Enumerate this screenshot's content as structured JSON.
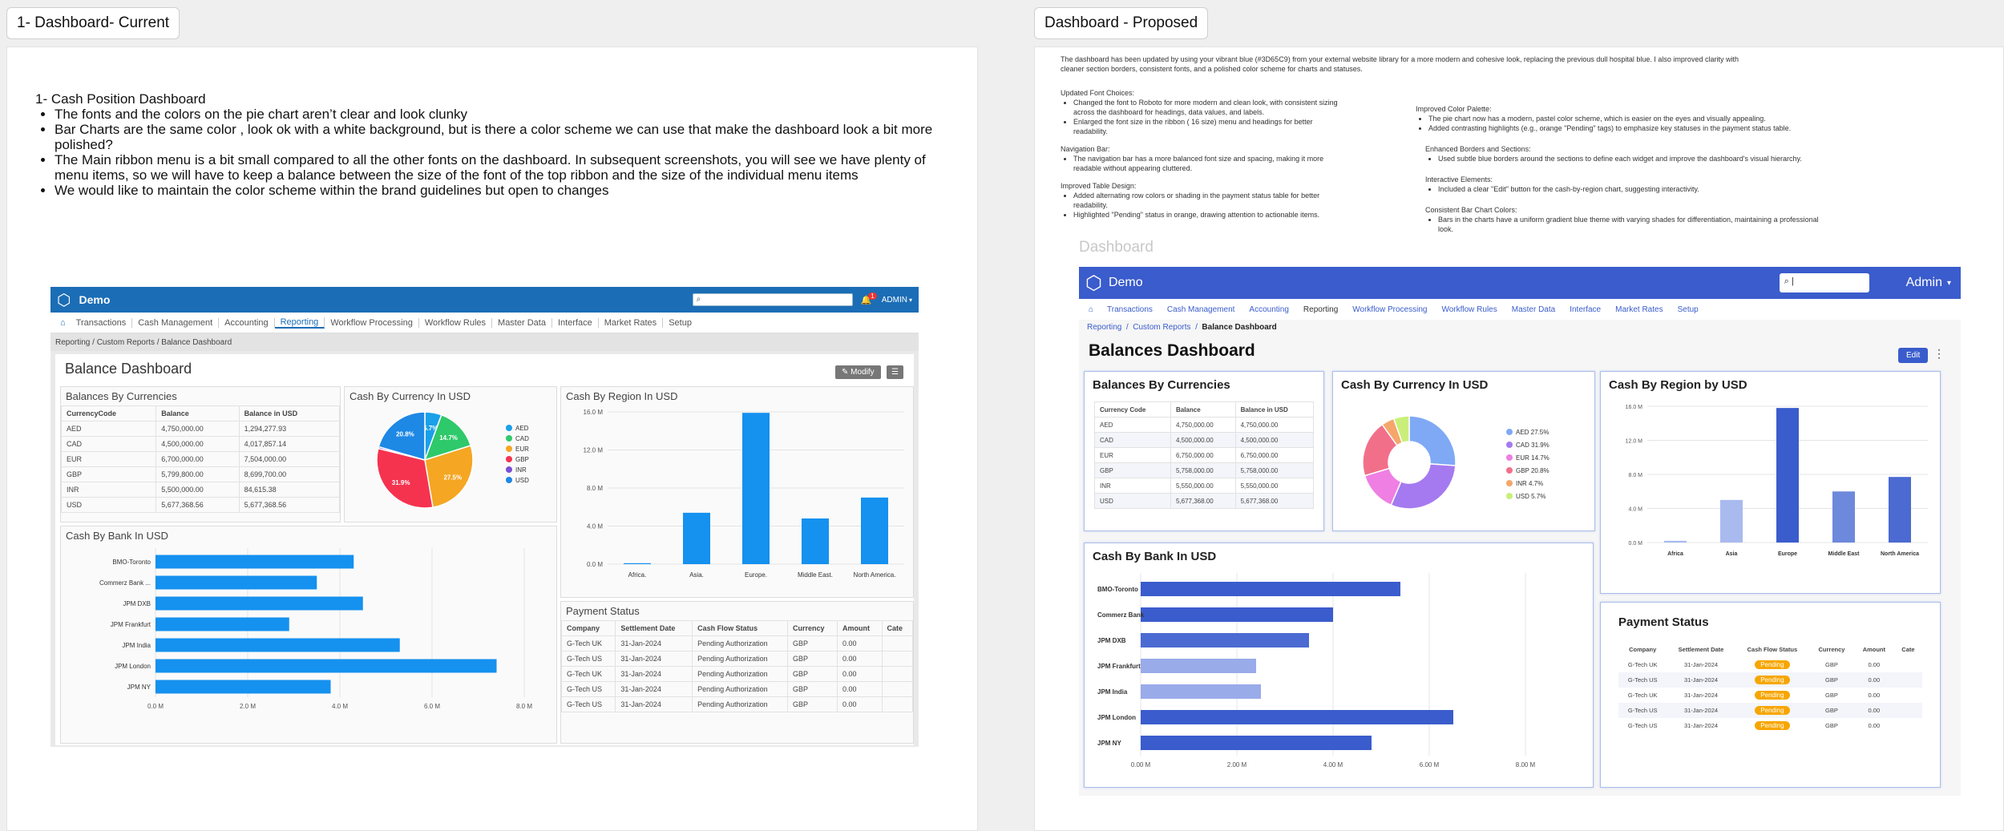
{
  "frames": {
    "current_label": "1- Dashboard- Current",
    "proposed_label": "Dashboard - Proposed"
  },
  "intro": {
    "title": "1- Cash Position Dashboard",
    "bullets": [
      "The fonts and the colors on the pie chart aren’t clear and look clunky",
      "Bar Charts are the same color , look ok with a white background, but is there a color scheme we can use that make the dashboard look a bit more polished?",
      "The Main ribbon menu is a bit small compared to all the other fonts on the dashboard. In subsequent screenshots, you will see we have plenty of menu items, so we will have to keep a balance between the size of the font of the top ribbon and the size of the individual menu items",
      "We would like to maintain the color scheme within the brand guidelines but open to changes"
    ]
  },
  "current": {
    "app_name": "Demo",
    "notif_count": "1",
    "user": "ADMIN",
    "nav": [
      "Transactions",
      "Cash Management",
      "Accounting",
      "Reporting",
      "Workflow Processing",
      "Workflow Rules",
      "Master Data",
      "Interface",
      "Market Rates",
      "Setup"
    ],
    "breadcrumb": [
      "Reporting",
      "Custom Reports",
      "Balance Dashboard"
    ],
    "title": "Balance Dashboard",
    "modify_label": "Modify",
    "balances": {
      "title": "Balances By Currencies",
      "headers": [
        "CurrencyCode",
        "Balance",
        "Balance in USD"
      ],
      "rows": [
        [
          "AED",
          "4,750,000.00",
          "1,294,277.93"
        ],
        [
          "CAD",
          "4,500,000.00",
          "4,017,857.14"
        ],
        [
          "EUR",
          "6,700,000.00",
          "7,504,000.00"
        ],
        [
          "GBP",
          "5,799,800.00",
          "8,699,700.00"
        ],
        [
          "INR",
          "5,500,000.00",
          "84,615.38"
        ],
        [
          "USD",
          "5,677,368.56",
          "5,677,368.56"
        ]
      ]
    },
    "pie": {
      "title": "Cash By Currency In USD"
    },
    "region": {
      "title": "Cash By Region In USD"
    },
    "bank": {
      "title": "Cash By Bank In USD"
    },
    "payment": {
      "title": "Payment Status",
      "headers": [
        "Company",
        "Settlement Date",
        "Cash Flow Status",
        "Currency",
        "Amount",
        "Cate"
      ],
      "rows": [
        [
          "G-Tech UK",
          "31-Jan-2024",
          "Pending Authorization",
          "GBP",
          "0.00"
        ],
        [
          "G-Tech US",
          "31-Jan-2024",
          "Pending Authorization",
          "GBP",
          "0.00"
        ],
        [
          "G-Tech UK",
          "31-Jan-2024",
          "Pending Authorization",
          "GBP",
          "0.00"
        ],
        [
          "G-Tech US",
          "31-Jan-2024",
          "Pending Authorization",
          "GBP",
          "0.00"
        ],
        [
          "G-Tech US",
          "31-Jan-2024",
          "Pending Authorization",
          "GBP",
          "0.00"
        ]
      ]
    }
  },
  "notes": {
    "intro": "The dashboard has been updated by using your vibrant blue (#3D65C9) from your external website library for a more modern and cohesive look, replacing the previous dull hospital blue. I also improved clarity with cleaner section borders, consistent fonts, and a polished color scheme for charts and statuses.",
    "fonts_title": "Updated Font Choices:",
    "fonts_items": [
      "Changed the font to Roboto for more modern and clean look, with consistent sizing across the dashboard for headings, data values, and labels.",
      "Enlarged the font size in the ribbon ( 16 size) menu and headings for better readability."
    ],
    "nav_title": "Navigation Bar:",
    "nav_items": [
      "The navigation bar has a more balanced font size and spacing, making it more readable without appearing cluttered."
    ],
    "table_title": "Improved Table Design:",
    "table_items": [
      "Added alternating row colors or shading in the payment status table for better readability.",
      "Highlighted \"Pending\" status in orange, drawing attention to actionable items."
    ],
    "palette_title": "Improved Color Palette:",
    "palette_items": [
      "The pie chart now has a modern, pastel color scheme, which is easier on the eyes and visually appealing.",
      "Added contrasting highlights (e.g., orange \"Pending\" tags) to emphasize key statuses in the payment status table."
    ],
    "borders_title": "Enhanced Borders and Sections:",
    "borders_items": [
      "Used subtle blue borders around the sections to define each widget and improve the dashboard's visual hierarchy."
    ],
    "interactive_title": "Interactive Elements:",
    "interactive_items": [
      "Included a clear \"Edit\" button for the cash-by-region chart, suggesting interactivity."
    ],
    "bar_title": "Consistent Bar Chart Colors:",
    "bar_items": [
      "Bars in the charts have a uniform gradient blue theme with varying shades for differentiation, maintaining a professional look."
    ]
  },
  "proposed": {
    "section_label": "Dashboard",
    "app_name": "Demo",
    "user": "Admin",
    "nav": [
      "Transactions",
      "Cash Management",
      "Accounting",
      "Reporting",
      "Workflow Processing",
      "Workflow Rules",
      "Master Data",
      "Interface",
      "Market Rates",
      "Setup"
    ],
    "breadcrumb": [
      "Reporting",
      "Custom Reports",
      "Balance Dashboard"
    ],
    "title": "Balances Dashboard",
    "edit_label": "Edit",
    "balances": {
      "title": "Balances By Currencies",
      "headers": [
        "Currency Code",
        "Balance",
        "Balance in USD"
      ],
      "rows": [
        [
          "AED",
          "4,750,000.00",
          "4,750,000.00"
        ],
        [
          "CAD",
          "4,500,000.00",
          "4,500,000.00"
        ],
        [
          "EUR",
          "6,750,000.00",
          "6,750,000.00"
        ],
        [
          "GBP",
          "5,758,000.00",
          "5,758,000.00"
        ],
        [
          "INR",
          "5,550,000.00",
          "5,550,000.00"
        ],
        [
          "USD",
          "5,677,368.00",
          "5,677,368.00"
        ]
      ]
    },
    "pie": {
      "title": "Cash By Currency In USD"
    },
    "region": {
      "title": "Cash By Region by USD"
    },
    "bank": {
      "title": "Cash By Bank In USD"
    },
    "payment": {
      "title": "Payment Status",
      "headers": [
        "Company",
        "Settlement Date",
        "Cash Flow Status",
        "Currency",
        "Amount",
        "Cate"
      ],
      "rows": [
        [
          "G-Tech UK",
          "31-Jan-2024",
          "Pending",
          "GBP",
          "0.00"
        ],
        [
          "G-Tech US",
          "31-Jan-2024",
          "Pending",
          "GBP",
          "0.00"
        ],
        [
          "G-Tech UK",
          "31-Jan-2024",
          "Pending",
          "GBP",
          "0.00"
        ],
        [
          "G-Tech US",
          "31-Jan-2024",
          "Pending",
          "GBP",
          "0.00"
        ],
        [
          "G-Tech US",
          "31-Jan-2024",
          "Pending",
          "GBP",
          "0.00"
        ]
      ]
    }
  },
  "chart_data": [
    {
      "id": "cur_pie",
      "type": "pie",
      "title": "Cash By Currency In USD",
      "categories": [
        "AED",
        "CAD",
        "EUR",
        "GBP",
        "INR",
        "USD"
      ],
      "values": [
        5.7,
        14.7,
        27.5,
        31.9,
        0.6,
        20.8
      ],
      "data_labels": [
        "5.7%",
        "14.7%",
        "27.5%",
        "31.9%",
        "",
        "20.8%"
      ],
      "colors": [
        "#1aa0e8",
        "#2ec96a",
        "#f5a623",
        "#f5334f",
        "#7b4fd6",
        "#1e88e5"
      ]
    },
    {
      "id": "cur_region",
      "type": "bar",
      "title": "Cash By Region In USD",
      "categories": [
        "Africa.",
        "Asia.",
        "Europe.",
        "Middle East.",
        "North America."
      ],
      "values": [
        0.1,
        5.4,
        15.9,
        4.8,
        7.0
      ],
      "ylim": [
        0,
        16
      ],
      "yticks": [
        "0.0 M",
        "4.0 M",
        "8.0 M",
        "12.0 M",
        "16.0 M"
      ],
      "color": "#1591ef"
    },
    {
      "id": "cur_bank",
      "type": "bar",
      "orientation": "horizontal",
      "title": "Cash By Bank In USD",
      "categories": [
        "BMO-Toronto",
        "Commerz Bank ...",
        "JPM DXB",
        "JPM Frankfurt",
        "JPM India",
        "JPM London",
        "JPM NY"
      ],
      "values": [
        4.3,
        3.5,
        4.5,
        2.9,
        5.3,
        7.4,
        3.8
      ],
      "xlim": [
        0,
        8
      ],
      "xticks": [
        "0.0 M",
        "2.0 M",
        "4.0 M",
        "6.0 M",
        "8.0 M"
      ],
      "color": "#1591ef"
    },
    {
      "id": "prop_pie",
      "type": "pie",
      "title": "Cash By Currency In USD",
      "categories": [
        "AED 27.5%",
        "CAD 31.9%",
        "EUR 14.7%",
        "GBP 20.8%",
        "INR 4.7%",
        "USD 5.7%"
      ],
      "values": [
        27.5,
        31.9,
        14.7,
        20.8,
        4.7,
        5.7
      ],
      "colors": [
        "#7fa9f5",
        "#a57af0",
        "#ef7fe3",
        "#f26f8a",
        "#f5a76b",
        "#c9ef7a"
      ]
    },
    {
      "id": "prop_region",
      "type": "bar",
      "title": "Cash By Region by USD",
      "categories": [
        "Africa",
        "Asia",
        "Europe",
        "Middle East",
        "North America"
      ],
      "values": [
        0.2,
        5.0,
        15.8,
        6.0,
        7.7
      ],
      "ylim": [
        0,
        16
      ],
      "yticks": [
        "0.0 M",
        "4.0 M",
        "8.0 M",
        "12.0 M",
        "16.0 M"
      ],
      "colors": [
        "#a9baee",
        "#a9baee",
        "#3a5ccc",
        "#6d89dc",
        "#4b6ad2"
      ]
    },
    {
      "id": "prop_bank",
      "type": "bar",
      "orientation": "horizontal",
      "title": "Cash By Bank In USD",
      "categories": [
        "BMO-Toronto",
        "Commerz Bank",
        "JPM DXB",
        "JPM Frankfurt",
        "JPM India",
        "JPM London",
        "JPM NY"
      ],
      "values": [
        5.4,
        4.0,
        3.5,
        2.4,
        2.5,
        6.5,
        4.8
      ],
      "xlim": [
        0,
        8
      ],
      "xticks": [
        "0.00 M",
        "2.00 M",
        "4.00 M",
        "6.00 M",
        "8.00 M"
      ],
      "colors": [
        "#3a5ccc",
        "#3a5ccc",
        "#4b6ad2",
        "#9aabea",
        "#9aabea",
        "#3a5ccc",
        "#3a5ccc"
      ]
    }
  ]
}
